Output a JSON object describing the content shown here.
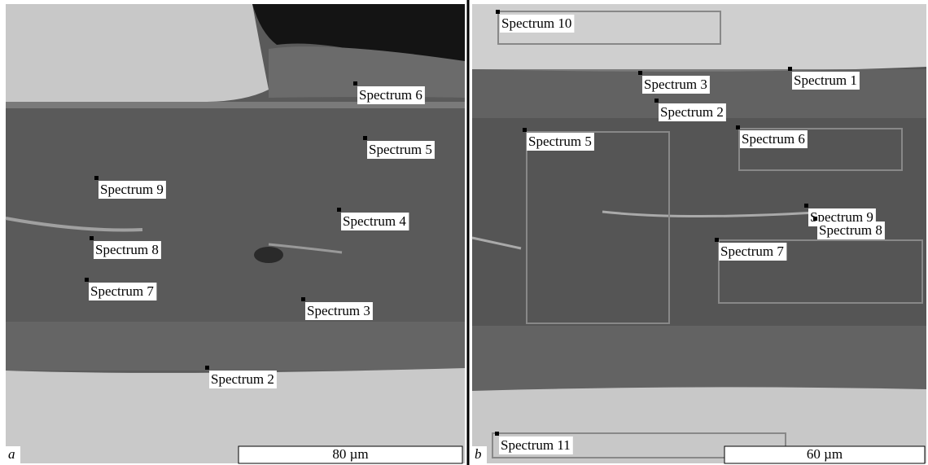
{
  "panels": [
    {
      "letter": "a",
      "scale_bar": "80 µm",
      "labels": [
        "Spectrum 6",
        "Spectrum 5",
        "Spectrum 9",
        "Spectrum 4",
        "Spectrum 8",
        "Spectrum 7",
        "Spectrum 3",
        "Spectrum 2"
      ]
    },
    {
      "letter": "b",
      "scale_bar": "60 µm",
      "labels": [
        "Spectrum 10",
        "Spectrum 3",
        "Spectrum 1",
        "Spectrum 2",
        "Spectrum 5",
        "Spectrum 6",
        "Spectrum 9",
        "Spectrum 8",
        "Spectrum 7",
        "Spectrum 11"
      ]
    }
  ]
}
